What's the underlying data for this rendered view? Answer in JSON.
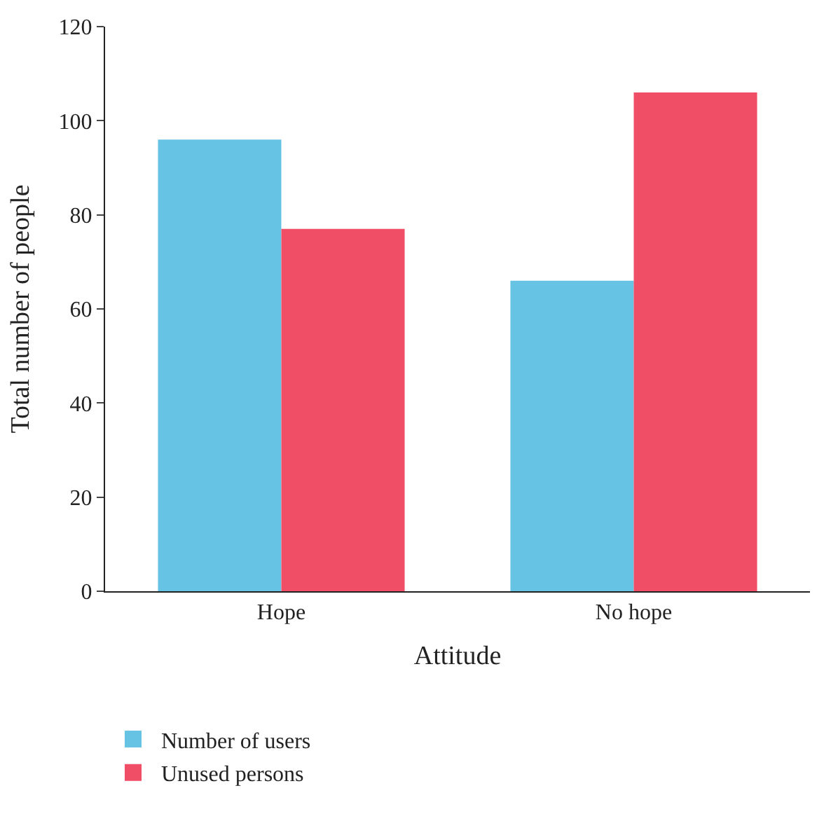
{
  "chart_data": {
    "type": "bar",
    "xlabel": "Attitude",
    "ylabel": "Total number of people",
    "categories": [
      "Hope",
      "No hope"
    ],
    "series": [
      {
        "name": "Number of users",
        "color": "#66c3e3",
        "values": [
          96,
          66
        ]
      },
      {
        "name": "Unused persons",
        "color": "#f04d66",
        "values": [
          77,
          106
        ]
      }
    ],
    "ylim": [
      0,
      120
    ],
    "yticks": [
      0,
      20,
      40,
      60,
      80,
      100,
      120
    ],
    "legend": "bottom left"
  }
}
